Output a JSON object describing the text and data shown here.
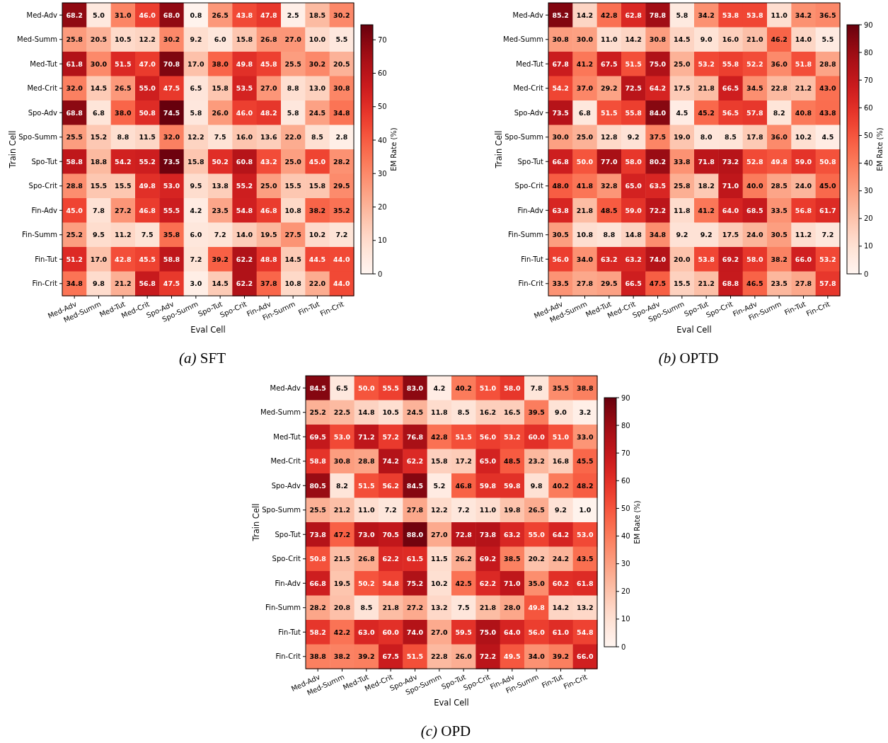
{
  "chart_data": [
    {
      "type": "heatmap",
      "title": "(a) SFT",
      "xlabel": "Eval Cell",
      "ylabel": "Train Cell",
      "clabel": "EM Rate (%)",
      "categories": [
        "Med-Adv",
        "Med-Summ",
        "Med-Tut",
        "Med-Crit",
        "Spo-Adv",
        "Spo-Summ",
        "Spo-Tut",
        "Spo-Crit",
        "Fin-Adv",
        "Fin-Summ",
        "Fin-Tut",
        "Fin-Crit"
      ],
      "y_categories": [
        "Med-Adv",
        "Med-Summ",
        "Med-Tut",
        "Med-Crit",
        "Spo-Adv",
        "Spo-Summ",
        "Spo-Tut",
        "Spo-Crit",
        "Fin-Adv",
        "Fin-Summ",
        "Fin-Tut",
        "Fin-Crit"
      ],
      "cells": [
        [
          68.2,
          5.0,
          31.0,
          46.0,
          68.0,
          0.8,
          26.5,
          43.8,
          47.8,
          2.5,
          18.5,
          30.2
        ],
        [
          25.8,
          20.5,
          10.5,
          12.2,
          30.2,
          9.2,
          6.0,
          15.8,
          26.8,
          27.0,
          10.0,
          5.5
        ],
        [
          61.8,
          30.0,
          51.5,
          47.0,
          70.8,
          17.0,
          38.0,
          49.8,
          45.8,
          25.5,
          30.2,
          20.5
        ],
        [
          32.0,
          14.5,
          26.5,
          55.0,
          47.5,
          6.5,
          15.8,
          53.5,
          27.0,
          8.8,
          13.0,
          30.8
        ],
        [
          68.8,
          6.8,
          38.0,
          50.8,
          74.5,
          5.8,
          26.0,
          46.0,
          48.2,
          5.8,
          24.5,
          34.8
        ],
        [
          25.5,
          15.2,
          8.8,
          11.5,
          32.0,
          12.2,
          7.5,
          16.0,
          13.6,
          22.0,
          8.5,
          2.8
        ],
        [
          58.8,
          18.8,
          54.2,
          55.2,
          73.5,
          15.8,
          50.2,
          60.8,
          43.2,
          25.0,
          45.0,
          28.2
        ],
        [
          28.8,
          15.5,
          15.5,
          49.8,
          53.0,
          9.5,
          13.8,
          55.2,
          25.0,
          15.5,
          15.8,
          29.5
        ],
        [
          45.0,
          7.8,
          27.2,
          46.8,
          55.5,
          4.2,
          23.5,
          54.8,
          46.8,
          10.8,
          38.2,
          35.2
        ],
        [
          25.2,
          9.5,
          11.2,
          7.5,
          35.8,
          6.0,
          7.2,
          14.0,
          19.5,
          27.5,
          10.2,
          7.2
        ],
        [
          51.2,
          17.0,
          42.8,
          45.5,
          58.8,
          7.2,
          39.2,
          62.2,
          48.8,
          14.5,
          44.5,
          44.0
        ],
        [
          34.8,
          9.8,
          21.2,
          56.8,
          47.5,
          3.0,
          14.5,
          62.2,
          37.8,
          10.8,
          22.0,
          44.0
        ]
      ],
      "cell_labels": [
        [
          "68.2",
          "5.0",
          "31.0",
          "46.0",
          "68.0",
          "0.8",
          "26.5",
          "43.8",
          "47.8",
          "2.5",
          "18.5",
          "30.2"
        ],
        [
          "25.8",
          "20.5",
          "10.5",
          "12.2",
          "30.2",
          "9.2",
          "6.0",
          "15.8",
          "26.8",
          "27.0",
          "10.0",
          "5.5"
        ],
        [
          "61.8",
          "30.0",
          "51.5",
          "47.0",
          "70.8",
          "17.0",
          "38.0",
          "49.8",
          "45.8",
          "25.5",
          "30.2",
          "20.5"
        ],
        [
          "32.0",
          "14.5",
          "26.5",
          "55.0",
          "47.5",
          "6.5",
          "15.8",
          "53.5",
          "27.0",
          "8.8",
          "13.0",
          "30.8"
        ],
        [
          "68.8",
          "6.8",
          "38.0",
          "50.8",
          "74.5",
          "5.8",
          "26.0",
          "46.0",
          "48.2",
          "5.8",
          "24.5",
          "34.8"
        ],
        [
          "25.5",
          "15.2",
          "8.8",
          "11.5",
          "32.0",
          "12.2",
          "7.5",
          "16.0",
          "13.6",
          "22.0",
          "8.5",
          "2.8"
        ],
        [
          "58.8",
          "18.8",
          "54.2",
          "55.2",
          "73.5",
          "15.8",
          "50.2",
          "60.8",
          "43.2",
          "25.0",
          "45.0",
          "28.2"
        ],
        [
          "28.8",
          "15.5",
          "15.5",
          "49.8",
          "53.0",
          "9.5",
          "13.8",
          "55.2",
          "25.0",
          "15.5",
          "15.8",
          "29.5"
        ],
        [
          "45.0",
          "7.8",
          "27.2",
          "46.8",
          "55.5",
          "4.2",
          "23.5",
          "54.8",
          "46.8",
          "10.8",
          "38.2",
          "35.2"
        ],
        [
          "25.2",
          "9.5",
          "11.2",
          "7.5",
          "35.8",
          "6.0",
          "7.2",
          "14.0",
          "19.5",
          "27.5",
          "10.2",
          "7.2"
        ],
        [
          "51.2",
          "17.0",
          "42.8",
          "45.5",
          "58.8",
          "7.2",
          "39.2",
          "62.2",
          "48.8",
          "14.5",
          "44.5",
          "44.0"
        ],
        [
          "34.8",
          "9.8",
          "21.2",
          "56.8",
          "47.5",
          "3.0",
          "14.5",
          "62.2",
          "37.8",
          "10.8",
          "22.0",
          "44.0"
        ]
      ],
      "clim": [
        0,
        74.5
      ],
      "cticks": [
        0,
        10,
        20,
        30,
        40,
        50,
        60,
        70
      ],
      "data_labels": true
    },
    {
      "type": "heatmap",
      "title": "(b) OPTD",
      "xlabel": "Eval Cell",
      "ylabel": "Train Cell",
      "clabel": "EM Rate (%)",
      "categories": [
        "Med-Adv",
        "Med-Summ",
        "Med-Tut",
        "Med-Crit",
        "Spo-Adv",
        "Spo-Summ",
        "Spo-Tut",
        "Spo-Crit",
        "Fin-Adv",
        "Fin-Summ",
        "Fin-Tut",
        "Fin-Crit"
      ],
      "y_categories": [
        "Med-Adv",
        "Med-Summ",
        "Med-Tut",
        "Med-Crit",
        "Spo-Adv",
        "Spo-Summ",
        "Spo-Tut",
        "Spo-Crit",
        "Fin-Adv",
        "Fin-Summ",
        "Fin-Tut",
        "Fin-Crit"
      ],
      "cells": [
        [
          85.2,
          14.2,
          42.8,
          62.8,
          78.8,
          5.8,
          34.2,
          53.8,
          53.8,
          11.0,
          34.2,
          36.5
        ],
        [
          30.8,
          30.0,
          11.0,
          14.2,
          30.8,
          14.5,
          9.0,
          16.0,
          21.0,
          46.2,
          14.0,
          5.5
        ],
        [
          67.8,
          41.2,
          67.5,
          51.5,
          75.0,
          25.0,
          53.2,
          55.8,
          52.2,
          36.0,
          51.8,
          28.8
        ],
        [
          54.2,
          37.0,
          29.2,
          72.5,
          64.2,
          17.5,
          21.8,
          66.5,
          34.5,
          22.8,
          21.2,
          43.0
        ],
        [
          73.5,
          6.8,
          51.5,
          55.8,
          84.0,
          4.5,
          45.2,
          56.5,
          57.8,
          8.2,
          40.8,
          43.8
        ],
        [
          30.0,
          25.0,
          12.8,
          9.2,
          37.5,
          19.0,
          8.0,
          8.5,
          17.8,
          36.0,
          10.2,
          4.5
        ],
        [
          66.8,
          50.0,
          77.0,
          58.0,
          80.2,
          33.8,
          71.8,
          73.2,
          52.8,
          49.8,
          59.0,
          50.8
        ],
        [
          48.0,
          41.8,
          32.8,
          65.0,
          63.5,
          25.8,
          18.2,
          71.0,
          40.0,
          28.5,
          24.0,
          45.0
        ],
        [
          63.8,
          21.8,
          48.5,
          59.0,
          72.2,
          11.8,
          41.2,
          64.0,
          68.5,
          33.5,
          56.8,
          61.7
        ],
        [
          30.5,
          10.8,
          8.8,
          14.8,
          34.8,
          9.2,
          9.2,
          17.5,
          24.0,
          30.5,
          11.2,
          7.2
        ],
        [
          56.0,
          34.0,
          63.2,
          63.2,
          74.0,
          20.0,
          53.8,
          69.2,
          58.0,
          38.2,
          66.0,
          53.2
        ],
        [
          33.5,
          27.8,
          29.5,
          66.5,
          47.5,
          15.5,
          21.2,
          68.8,
          46.5,
          23.5,
          27.8,
          57.8
        ]
      ],
      "cell_labels": [
        [
          "85.2",
          "14.2",
          "42.8",
          "62.8",
          "78.8",
          "5.8",
          "34.2",
          "53.8",
          "53.8",
          "11.0",
          "34.2",
          "36.5"
        ],
        [
          "30.8",
          "30.0",
          "11.0",
          "14.2",
          "30.8",
          "14.5",
          "9.0",
          "16.0",
          "21.0",
          "46.2",
          "14.0",
          "5.5"
        ],
        [
          "67.8",
          "41.2",
          "67.5",
          "51.5",
          "75.0",
          "25.0",
          "53.2",
          "55.8",
          "52.2",
          "36.0",
          "51.8",
          "28.8"
        ],
        [
          "54.2",
          "37.0",
          "29.2",
          "72.5",
          "64.2",
          "17.5",
          "21.8",
          "66.5",
          "34.5",
          "22.8",
          "21.2",
          "43.0"
        ],
        [
          "73.5",
          "6.8",
          "51.5",
          "55.8",
          "84.0",
          "4.5",
          "45.2",
          "56.5",
          "57.8",
          "8.2",
          "40.8",
          "43.8"
        ],
        [
          "30.0",
          "25.0",
          "12.8",
          "9.2",
          "37.5",
          "19.0",
          "8.0",
          "8.5",
          "17.8",
          "36.0",
          "10.2",
          "4.5"
        ],
        [
          "66.8",
          "50.0",
          "77.0",
          "58.0",
          "80.2",
          "33.8",
          "71.8",
          "73.2",
          "52.8",
          "49.8",
          "59.0",
          "50.8"
        ],
        [
          "48.0",
          "41.8",
          "32.8",
          "65.0",
          "63.5",
          "25.8",
          "18.2",
          "71.0",
          "40.0",
          "28.5",
          "24.0",
          "45.0"
        ],
        [
          "63.8",
          "21.8",
          "48.5",
          "59.0",
          "72.2",
          "11.8",
          "41.2",
          "64.0",
          "68.5",
          "33.5",
          "56.8",
          "61.7"
        ],
        [
          "30.5",
          "10.8",
          "8.8",
          "14.8",
          "34.8",
          "9.2",
          "9.2",
          "17.5",
          "24.0",
          "30.5",
          "11.2",
          "7.2"
        ],
        [
          "56.0",
          "34.0",
          "63.2",
          "63.2",
          "74.0",
          "20.0",
          "53.8",
          "69.2",
          "58.0",
          "38.2",
          "66.0",
          "53.2"
        ],
        [
          "33.5",
          "27.8",
          "29.5",
          "66.5",
          "47.5",
          "15.5",
          "21.2",
          "68.8",
          "46.5",
          "23.5",
          "27.8",
          "57.8"
        ]
      ],
      "clim": [
        0,
        90
      ],
      "cticks": [
        0,
        10,
        20,
        30,
        40,
        50,
        60,
        70,
        80,
        90
      ],
      "data_labels": true
    },
    {
      "type": "heatmap",
      "title": "(c) OPD",
      "xlabel": "Eval Cell",
      "ylabel": "Train Cell",
      "clabel": "EM Rate (%)",
      "categories": [
        "Med-Adv",
        "Med-Summ",
        "Med-Tut",
        "Med-Crit",
        "Spo-Adv",
        "Spo-Summ",
        "Spo-Tut",
        "Spo-Crit",
        "Fin-Adv",
        "Fin-Summ",
        "Fin-Tut",
        "Fin-Crit"
      ],
      "y_categories": [
        "Med-Adv",
        "Med-Summ",
        "Med-Tut",
        "Med-Crit",
        "Spo-Adv",
        "Spo-Summ",
        "Spo-Tut",
        "Spo-Crit",
        "Fin-Adv",
        "Fin-Summ",
        "Fin-Tut",
        "Fin-Crit"
      ],
      "cells": [
        [
          84.5,
          6.5,
          50.0,
          55.5,
          83.0,
          4.2,
          40.2,
          51.0,
          58.0,
          7.8,
          35.5,
          38.8
        ],
        [
          25.2,
          22.5,
          14.8,
          10.5,
          24.5,
          11.8,
          8.5,
          16.2,
          16.5,
          39.5,
          9.0,
          3.2
        ],
        [
          69.5,
          53.0,
          71.2,
          57.2,
          76.8,
          42.8,
          51.5,
          56.0,
          53.2,
          60.0,
          51.0,
          33.0
        ],
        [
          58.8,
          30.8,
          28.8,
          74.2,
          62.2,
          15.8,
          17.2,
          65.0,
          48.5,
          23.2,
          16.8,
          45.5
        ],
        [
          80.5,
          8.2,
          51.5,
          56.2,
          84.5,
          5.2,
          46.8,
          59.8,
          59.8,
          9.8,
          40.2,
          48.2
        ],
        [
          25.5,
          21.2,
          11.0,
          7.2,
          27.8,
          12.2,
          7.2,
          11.0,
          19.8,
          26.5,
          9.2,
          1.0
        ],
        [
          73.8,
          47.2,
          73.0,
          70.5,
          88.0,
          27.0,
          72.8,
          73.8,
          63.2,
          55.0,
          64.2,
          53.0
        ],
        [
          50.8,
          21.5,
          26.8,
          62.2,
          61.5,
          11.5,
          26.2,
          69.2,
          38.5,
          20.2,
          24.2,
          43.5
        ],
        [
          66.8,
          19.5,
          50.2,
          54.8,
          75.2,
          10.2,
          42.5,
          62.2,
          71.0,
          35.0,
          60.2,
          61.8
        ],
        [
          28.2,
          20.8,
          8.5,
          21.8,
          27.2,
          13.2,
          7.5,
          21.8,
          28.0,
          49.8,
          14.2,
          13.2
        ],
        [
          58.2,
          42.2,
          63.0,
          60.0,
          74.0,
          27.0,
          59.5,
          75.0,
          64.0,
          56.0,
          61.0,
          54.8
        ],
        [
          38.8,
          38.2,
          39.2,
          67.5,
          51.5,
          22.8,
          26.0,
          72.2,
          49.5,
          34.0,
          39.2,
          66.0
        ]
      ],
      "cell_labels": [
        [
          "84.5",
          "6.5",
          "50.0",
          "55.5",
          "83.0",
          "4.2",
          "40.2",
          "51.0",
          "58.0",
          "7.8",
          "35.5",
          "38.8"
        ],
        [
          "25.2",
          "22.5",
          "14.8",
          "10.5",
          "24.5",
          "11.8",
          "8.5",
          "16.2",
          "16.5",
          "39.5",
          "9.0",
          "3.2"
        ],
        [
          "69.5",
          "53.0",
          "71.2",
          "57.2",
          "76.8",
          "42.8",
          "51.5",
          "56.0",
          "53.2",
          "60.0",
          "51.0",
          "33.0"
        ],
        [
          "58.8",
          "30.8",
          "28.8",
          "74.2",
          "62.2",
          "15.8",
          "17.2",
          "65.0",
          "48.5",
          "23.2",
          "16.8",
          "45.5"
        ],
        [
          "80.5",
          "8.2",
          "51.5",
          "56.2",
          "84.5",
          "5.2",
          "46.8",
          "59.8",
          "59.8",
          "9.8",
          "40.2",
          "48.2"
        ],
        [
          "25.5",
          "21.2",
          "11.0",
          "7.2",
          "27.8",
          "12.2",
          "7.2",
          "11.0",
          "19.8",
          "26.5",
          "9.2",
          "1.0"
        ],
        [
          "73.8",
          "47.2",
          "73.0",
          "70.5",
          "88.0",
          "27.0",
          "72.8",
          "73.8",
          "63.2",
          "55.0",
          "64.2",
          "53.0"
        ],
        [
          "50.8",
          "21.5",
          "26.8",
          "62.2",
          "61.5",
          "11.5",
          "26.2",
          "69.2",
          "38.5",
          "20.2",
          "24.2",
          "43.5"
        ],
        [
          "66.8",
          "19.5",
          "50.2",
          "54.8",
          "75.2",
          "10.2",
          "42.5",
          "62.2",
          "71.0",
          "35.0",
          "60.2",
          "61.8"
        ],
        [
          "28.2",
          "20.8",
          "8.5",
          "21.8",
          "27.2",
          "13.2",
          "7.5",
          "21.8",
          "28.0",
          "49.8",
          "14.2",
          "13.2"
        ],
        [
          "58.2",
          "42.2",
          "63.0",
          "60.0",
          "74.0",
          "27.0",
          "59.5",
          "75.0",
          "64.0",
          "56.0",
          "61.0",
          "54.8"
        ],
        [
          "38.8",
          "38.2",
          "39.2",
          "67.5",
          "51.5",
          "22.8",
          "26.0",
          "72.2",
          "49.5",
          "34.0",
          "39.2",
          "66.0"
        ]
      ],
      "clim": [
        0,
        90
      ],
      "cticks": [
        0,
        10,
        20,
        30,
        40,
        50,
        60,
        70,
        80,
        90
      ],
      "data_labels": true
    }
  ]
}
